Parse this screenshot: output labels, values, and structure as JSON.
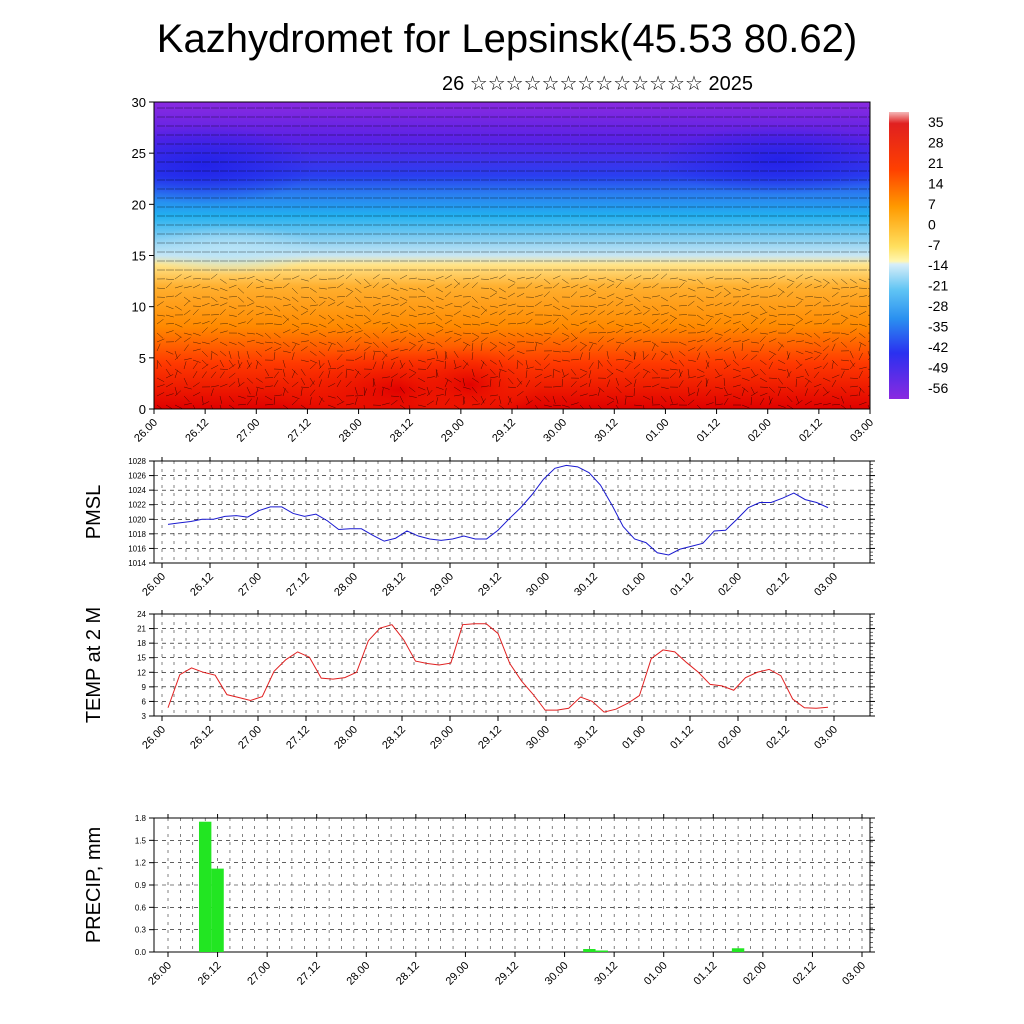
{
  "header": {
    "title": "Kazhydromet for Lepsinsk(45.53 80.62)",
    "subtitle": "26 ☆☆☆☆☆☆☆☆☆☆☆☆☆ 2025"
  },
  "chart_data": [
    {
      "type": "heatmap",
      "title": "",
      "xlabel": "",
      "ylabel": "",
      "x_ticks": [
        "26.00",
        "26.12",
        "27.00",
        "27.12",
        "28.00",
        "28.12",
        "29.00",
        "29.12",
        "30.00",
        "30.12",
        "01.00",
        "01.12",
        "02.00",
        "02.12",
        "03.00"
      ],
      "y_ticks": [
        0,
        5,
        10,
        15,
        20,
        25,
        30
      ],
      "ylim": [
        0,
        30
      ],
      "colorbar_labels": [
        35,
        28,
        21,
        14,
        7,
        0,
        -7,
        -14,
        -21,
        -28,
        -35,
        -42,
        -49,
        -56
      ],
      "overlay": "wind barbs",
      "colors": {
        "warm_max": "#e00000",
        "warm_mid": "#ff8a00",
        "neutral": "#fff6a8",
        "cold_mid": "#22b0f0",
        "cold_max": "#7a1ae0"
      }
    },
    {
      "type": "line",
      "ylabel": "PMSL",
      "ylim": [
        1014,
        1028
      ],
      "y_ticks": [
        1014,
        1016,
        1018,
        1020,
        1022,
        1024,
        1026,
        1028
      ],
      "x_ticks": [
        "26.00",
        "26.12",
        "27.00",
        "27.12",
        "28.00",
        "28.12",
        "29.00",
        "29.12",
        "30.00",
        "30.12",
        "01.00",
        "01.12",
        "02.00",
        "02.12",
        "03.00"
      ],
      "series": [
        {
          "color": "#1a1ad0",
          "values": [
            1019.3,
            1019.5,
            1019.7,
            1020.0,
            1020.0,
            1020.4,
            1020.5,
            1020.3,
            1021.2,
            1021.7,
            1021.7,
            1020.8,
            1020.4,
            1020.7,
            1019.8,
            1018.6,
            1018.7,
            1018.7,
            1017.8,
            1017.0,
            1017.4,
            1018.4,
            1017.7,
            1017.3,
            1017.1,
            1017.3,
            1017.7,
            1017.3,
            1017.3,
            1018.5,
            1020.1,
            1021.6,
            1023.4,
            1025.5,
            1027.0,
            1027.4,
            1027.2,
            1026.4,
            1024.7,
            1022.0,
            1019.0,
            1017.3,
            1016.8,
            1015.4,
            1015.1,
            1015.9,
            1016.3,
            1016.7,
            1018.4,
            1018.5,
            1020.0,
            1021.6,
            1022.3,
            1022.3,
            1022.9,
            1023.6,
            1022.7,
            1022.3,
            1021.6
          ]
        }
      ]
    },
    {
      "type": "line",
      "ylabel": "TEMP at 2 M",
      "ylim": [
        3,
        24
      ],
      "y_ticks": [
        3,
        6,
        9,
        12,
        15,
        18,
        21,
        24
      ],
      "x_ticks": [
        "26.00",
        "26.12",
        "27.00",
        "27.12",
        "28.00",
        "28.12",
        "29.00",
        "29.12",
        "30.00",
        "30.12",
        "01.00",
        "01.12",
        "02.00",
        "02.12",
        "03.00"
      ],
      "series": [
        {
          "color": "#e02020",
          "values": [
            4.7,
            11.5,
            12.9,
            12.0,
            11.4,
            7.4,
            6.8,
            6.2,
            7.0,
            12.2,
            14.6,
            16.2,
            15.1,
            10.8,
            10.6,
            10.9,
            12.0,
            18.5,
            21.1,
            21.8,
            18.7,
            14.3,
            13.8,
            13.5,
            13.9,
            21.8,
            22.0,
            22.0,
            20.0,
            13.8,
            10.2,
            7.4,
            4.2,
            4.2,
            4.6,
            6.9,
            6.0,
            3.8,
            4.4,
            5.6,
            7.2,
            14.8,
            16.6,
            16.2,
            14.0,
            12.0,
            9.5,
            9.2,
            8.3,
            10.9,
            12.0,
            12.6,
            11.3,
            6.5,
            4.7,
            4.6,
            4.8
          ]
        }
      ]
    },
    {
      "type": "bar",
      "ylabel": "PRECIP, mm",
      "ylim": [
        0.0,
        1.8
      ],
      "y_ticks": [
        "0.0",
        "0.3",
        "0.6",
        "0.9",
        "1.2",
        "1.5",
        "1.8"
      ],
      "x_ticks": [
        "26.00",
        "26.12",
        "27.00",
        "27.12",
        "28.00",
        "28.12",
        "29.00",
        "29.12",
        "30.00",
        "30.12",
        "01.00",
        "01.12",
        "02.00",
        "02.12",
        "03.00"
      ],
      "bars": [
        {
          "x": 3,
          "value": 1.75
        },
        {
          "x": 4,
          "value": 1.12
        },
        {
          "x": 34,
          "value": 0.04
        },
        {
          "x": 35,
          "value": 0.02
        },
        {
          "x": 46,
          "value": 0.05
        }
      ],
      "colors": {
        "bar": "#22e622"
      }
    }
  ]
}
